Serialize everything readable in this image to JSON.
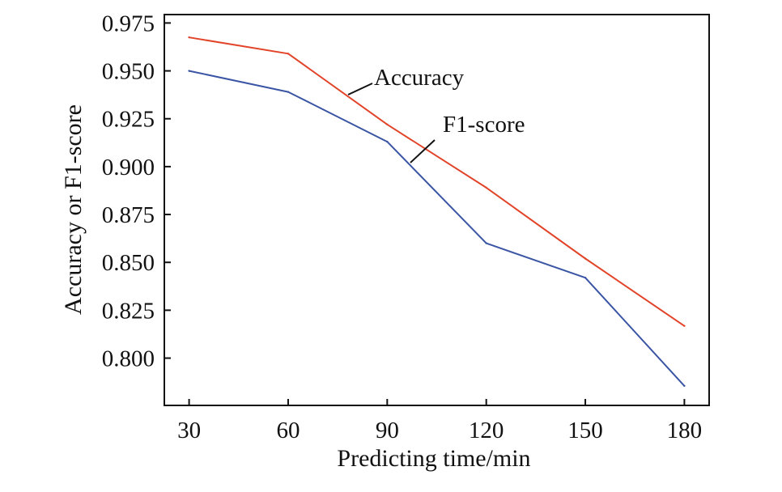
{
  "chart_data": {
    "type": "line",
    "title": "",
    "xlabel": "Predicting time/min",
    "ylabel": "Accuracy or F1-score",
    "x": [
      30,
      60,
      90,
      120,
      150,
      180
    ],
    "x_tick_labels": [
      "30",
      "60",
      "90",
      "120",
      "150",
      "180"
    ],
    "xlim": [
      22.5,
      187.5
    ],
    "y_ticks": [
      0.8,
      0.825,
      0.85,
      0.875,
      0.9,
      0.925,
      0.95,
      0.975
    ],
    "y_tick_labels": [
      "0.800",
      "0.825",
      "0.850",
      "0.875",
      "0.900",
      "0.925",
      "0.950",
      "0.975"
    ],
    "ylim": [
      0.7753,
      0.9794
    ],
    "grid": false,
    "series": [
      {
        "name": "Accuracy",
        "color": "#e2442a",
        "values": [
          0.9675,
          0.959,
          0.922,
          0.889,
          0.852,
          0.8168
        ]
      },
      {
        "name": "F1-score",
        "color": "#3a55a4",
        "values": [
          0.95,
          0.939,
          0.913,
          0.86,
          0.842,
          0.7855
        ]
      }
    ],
    "annotations": [
      {
        "text": "Accuracy",
        "series": "Accuracy"
      },
      {
        "text": "F1-score",
        "series": "F1-score"
      }
    ]
  }
}
